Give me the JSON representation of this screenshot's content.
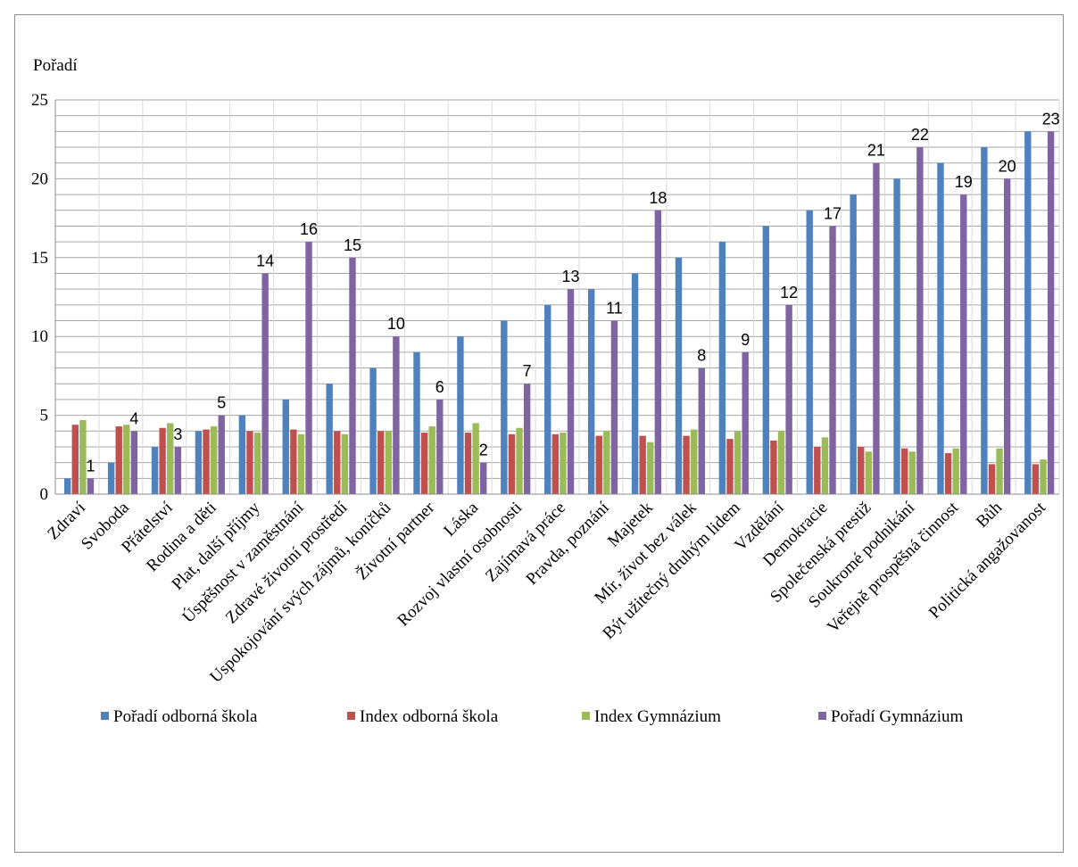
{
  "chart_data": {
    "type": "bar",
    "ylabel": "Pořadí",
    "ylim": [
      0,
      25
    ],
    "yticks": [
      0,
      5,
      10,
      15,
      20,
      25
    ],
    "grid": true,
    "legend_position": "bottom",
    "categories": [
      "Zdraví",
      "Svoboda",
      "Přátelství",
      "Rodina a děti",
      "Plat, další příjmy",
      "Úspěšnost v zaměstnání",
      "Zdravé životní prostředí",
      "Uspokojování svých zájmů, koníčků",
      "Životní partner",
      "Láska",
      "Rozvoj vlastní osobnosti",
      "Zajímavá práce",
      "Pravda, poznání",
      "Majetek",
      "Mír, život bez válek",
      "Být užitečný druhým lidem",
      "Vzdělání",
      "Demokracie",
      "Společenská prestiž",
      "Soukromé podnikání",
      "Veřejně prospěšná činnost",
      "Bůh",
      "Politická angažovanost"
    ],
    "series": [
      {
        "name": "Pořadí odborná  škola",
        "color": "#4f81bd",
        "values": [
          1,
          2,
          3,
          4,
          5,
          6,
          7,
          8,
          9,
          10,
          11,
          12,
          13,
          14,
          15,
          16,
          17,
          18,
          19,
          20,
          21,
          22,
          23
        ]
      },
      {
        "name": "Index odborná škola",
        "color": "#c0504d",
        "values": [
          4.4,
          4.3,
          4.2,
          4.1,
          4.0,
          4.1,
          4.0,
          4.0,
          3.9,
          3.9,
          3.8,
          3.8,
          3.7,
          3.7,
          3.7,
          3.5,
          3.4,
          3.0,
          3.0,
          2.9,
          2.6,
          1.9,
          1.9
        ]
      },
      {
        "name": "Index Gymnázium",
        "color": "#9bbb59",
        "values": [
          4.7,
          4.4,
          4.5,
          4.3,
          3.9,
          3.8,
          3.8,
          4.0,
          4.3,
          4.5,
          4.2,
          3.9,
          4.0,
          3.3,
          4.1,
          4.0,
          4.0,
          3.6,
          2.7,
          2.7,
          2.9,
          2.9,
          2.2
        ]
      },
      {
        "name": "Pořadí Gymnázium",
        "color": "#8064a2",
        "values": [
          1,
          4,
          3,
          5,
          14,
          16,
          15,
          10,
          6,
          2,
          7,
          13,
          11,
          18,
          8,
          9,
          12,
          17,
          21,
          22,
          19,
          20,
          23
        ]
      }
    ],
    "data_labels_series": "Pořadí Gymnázium"
  }
}
